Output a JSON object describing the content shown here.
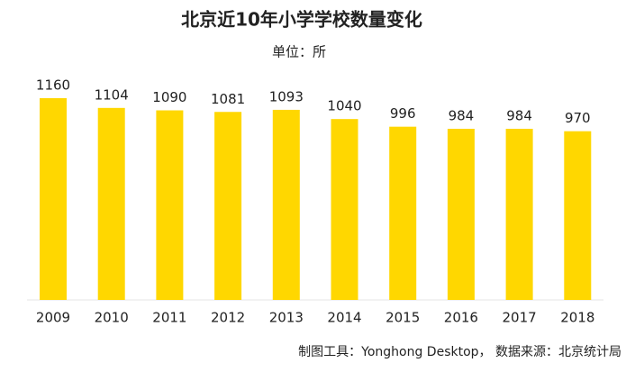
{
  "chart_data": {
    "type": "bar",
    "title": "北京近10年小学学校数量变化",
    "subtitle": "单位：所",
    "categories": [
      "2009",
      "2010",
      "2011",
      "2012",
      "2013",
      "2014",
      "2015",
      "2016",
      "2017",
      "2018"
    ],
    "values": [
      1160,
      1104,
      1090,
      1081,
      1093,
      1040,
      996,
      984,
      984,
      970
    ],
    "color": "#ffd700",
    "footnote": "制图工具：Yonghong Desktop，  数据来源：北京统计局"
  }
}
